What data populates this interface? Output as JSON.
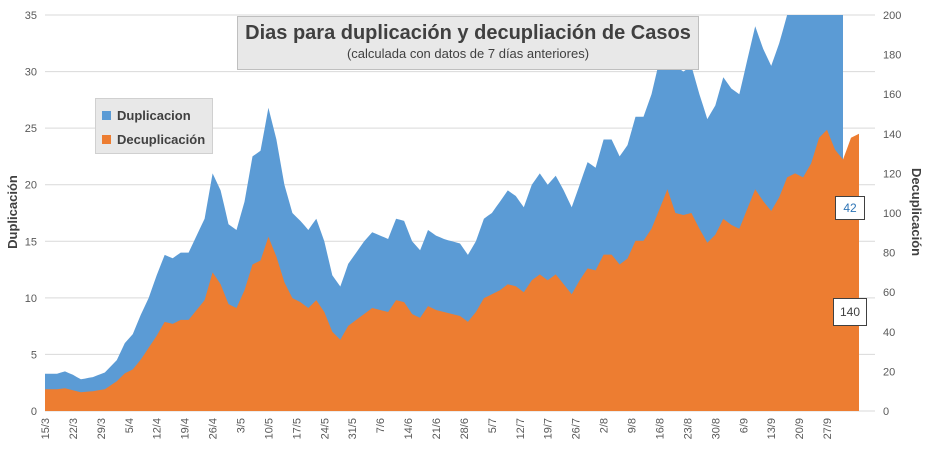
{
  "chart_data": {
    "type": "area",
    "title": "Dias para duplicación y decupliación de Casos",
    "subtitle": "(calculada con datos de 7 días anteriores)",
    "ylabel_left": "Duplicación",
    "ylabel_right": "Decuplicación",
    "ylim_left": [
      0,
      35
    ],
    "ylim_right": [
      0,
      200
    ],
    "yticks_left": [
      "0",
      "5",
      "10",
      "15",
      "20",
      "25",
      "30",
      "35"
    ],
    "yticks_right": [
      "0",
      "20",
      "40",
      "60",
      "80",
      "100",
      "120",
      "140",
      "160",
      "180",
      "200"
    ],
    "x_start": "15/3",
    "xtick_labels": [
      "15/3",
      "22/3",
      "29/3",
      "5/4",
      "12/4",
      "19/4",
      "26/4",
      "3/5",
      "10/5",
      "17/5",
      "24/5",
      "31/5",
      "7/6",
      "14/6",
      "21/6",
      "28/6",
      "5/7",
      "12/7",
      "19/7",
      "26/7",
      "2/8",
      "9/8",
      "16/8",
      "23/8",
      "30/8",
      "6/9",
      "13/9",
      "20/9",
      "27/9"
    ],
    "legend_position": "upper-left",
    "series": [
      {
        "name": "Duplicacion",
        "axis": "left",
        "color": "#5b9bd5",
        "keyframes": [
          [
            0,
            3.3
          ],
          [
            3,
            3.3
          ],
          [
            5,
            3.5
          ],
          [
            7,
            3.2
          ],
          [
            9,
            2.8
          ],
          [
            12,
            3.0
          ],
          [
            15,
            3.4
          ],
          [
            18,
            4.5
          ],
          [
            20,
            6.0
          ],
          [
            22,
            6.8
          ],
          [
            24,
            8.5
          ],
          [
            26,
            10.0
          ],
          [
            28,
            12.0
          ],
          [
            30,
            13.8
          ],
          [
            32,
            13.5
          ],
          [
            34,
            14.0
          ],
          [
            36,
            14.0
          ],
          [
            38,
            15.5
          ],
          [
            40,
            17.0
          ],
          [
            42,
            21.0
          ],
          [
            44,
            19.5
          ],
          [
            46,
            16.5
          ],
          [
            48,
            16.0
          ],
          [
            50,
            18.5
          ],
          [
            52,
            22.5
          ],
          [
            54,
            23.0
          ],
          [
            56,
            26.8
          ],
          [
            58,
            24.0
          ],
          [
            60,
            20.0
          ],
          [
            62,
            17.5
          ],
          [
            64,
            16.8
          ],
          [
            66,
            16.0
          ],
          [
            68,
            17.0
          ],
          [
            70,
            15.0
          ],
          [
            72,
            12.0
          ],
          [
            74,
            11.0
          ],
          [
            76,
            13.0
          ],
          [
            78,
            14.0
          ],
          [
            80,
            15.0
          ],
          [
            82,
            15.8
          ],
          [
            84,
            15.5
          ],
          [
            86,
            15.2
          ],
          [
            88,
            17.0
          ],
          [
            90,
            16.8
          ],
          [
            92,
            15.0
          ],
          [
            94,
            14.2
          ],
          [
            96,
            16.0
          ],
          [
            98,
            15.5
          ],
          [
            100,
            15.2
          ],
          [
            102,
            15.0
          ],
          [
            104,
            14.8
          ],
          [
            106,
            13.8
          ],
          [
            108,
            15.0
          ],
          [
            110,
            17.0
          ],
          [
            112,
            17.5
          ],
          [
            114,
            18.5
          ],
          [
            116,
            19.5
          ],
          [
            118,
            19.0
          ],
          [
            120,
            18.0
          ],
          [
            122,
            20.0
          ],
          [
            124,
            21.0
          ],
          [
            126,
            20.0
          ],
          [
            128,
            20.8
          ],
          [
            130,
            19.5
          ],
          [
            132,
            18.0
          ],
          [
            134,
            20.0
          ],
          [
            136,
            22.0
          ],
          [
            138,
            21.5
          ],
          [
            140,
            24.0
          ],
          [
            142,
            24.0
          ],
          [
            144,
            22.5
          ],
          [
            146,
            23.5
          ],
          [
            148,
            26.0
          ],
          [
            150,
            26.0
          ],
          [
            152,
            28.0
          ],
          [
            154,
            31.0
          ],
          [
            156,
            34.0
          ],
          [
            158,
            30.5
          ],
          [
            160,
            30.0
          ],
          [
            162,
            30.5
          ],
          [
            164,
            28.0
          ],
          [
            166,
            25.8
          ],
          [
            168,
            27.0
          ],
          [
            170,
            29.5
          ],
          [
            172,
            28.5
          ],
          [
            174,
            28.0
          ],
          [
            176,
            31.0
          ],
          [
            178,
            34.0
          ],
          [
            180,
            32.0
          ],
          [
            182,
            30.5
          ],
          [
            184,
            32.5
          ],
          [
            186,
            35.0
          ],
          [
            188,
            35.0
          ],
          [
            190,
            35.0
          ],
          [
            192,
            35.0
          ],
          [
            194,
            35.0
          ],
          [
            196,
            35.0
          ],
          [
            198,
            35.0
          ],
          [
            200,
            35.0
          ]
        ]
      },
      {
        "name": "Decuplicación",
        "axis": "right",
        "color": "#ed7d31",
        "keyframes": [
          [
            0,
            11
          ],
          [
            3,
            11
          ],
          [
            5,
            11.5
          ],
          [
            7,
            10.5
          ],
          [
            9,
            9.5
          ],
          [
            12,
            10
          ],
          [
            15,
            11
          ],
          [
            18,
            15
          ],
          [
            20,
            19
          ],
          [
            22,
            21
          ],
          [
            24,
            26
          ],
          [
            26,
            32
          ],
          [
            28,
            38
          ],
          [
            30,
            45
          ],
          [
            32,
            44
          ],
          [
            34,
            46
          ],
          [
            36,
            46
          ],
          [
            38,
            51
          ],
          [
            40,
            56
          ],
          [
            42,
            70
          ],
          [
            44,
            64
          ],
          [
            46,
            54
          ],
          [
            48,
            52
          ],
          [
            50,
            61
          ],
          [
            52,
            74
          ],
          [
            54,
            76
          ],
          [
            56,
            88
          ],
          [
            58,
            78
          ],
          [
            60,
            65
          ],
          [
            62,
            57
          ],
          [
            64,
            55
          ],
          [
            66,
            52
          ],
          [
            68,
            56
          ],
          [
            70,
            50
          ],
          [
            72,
            40
          ],
          [
            74,
            36
          ],
          [
            76,
            43
          ],
          [
            78,
            46
          ],
          [
            80,
            49
          ],
          [
            82,
            52
          ],
          [
            84,
            51
          ],
          [
            86,
            50
          ],
          [
            88,
            56
          ],
          [
            90,
            55
          ],
          [
            92,
            49
          ],
          [
            94,
            47
          ],
          [
            96,
            53
          ],
          [
            98,
            51
          ],
          [
            100,
            50
          ],
          [
            102,
            49
          ],
          [
            104,
            48
          ],
          [
            106,
            45
          ],
          [
            108,
            50
          ],
          [
            110,
            57
          ],
          [
            112,
            59
          ],
          [
            114,
            61
          ],
          [
            116,
            64
          ],
          [
            118,
            63
          ],
          [
            120,
            60
          ],
          [
            122,
            66
          ],
          [
            124,
            69
          ],
          [
            126,
            66
          ],
          [
            128,
            69
          ],
          [
            130,
            64
          ],
          [
            132,
            59
          ],
          [
            134,
            66
          ],
          [
            136,
            72
          ],
          [
            138,
            71
          ],
          [
            140,
            79
          ],
          [
            142,
            79
          ],
          [
            144,
            74
          ],
          [
            146,
            77
          ],
          [
            148,
            86
          ],
          [
            150,
            86
          ],
          [
            152,
            92
          ],
          [
            154,
            102
          ],
          [
            156,
            112
          ],
          [
            158,
            100
          ],
          [
            160,
            99
          ],
          [
            162,
            100
          ],
          [
            164,
            92
          ],
          [
            166,
            85
          ],
          [
            168,
            89
          ],
          [
            170,
            97
          ],
          [
            172,
            94
          ],
          [
            174,
            92
          ],
          [
            176,
            102
          ],
          [
            178,
            112
          ],
          [
            180,
            106
          ],
          [
            182,
            101
          ],
          [
            184,
            108
          ],
          [
            186,
            118
          ],
          [
            188,
            120
          ],
          [
            190,
            118
          ],
          [
            192,
            125
          ],
          [
            194,
            138
          ],
          [
            196,
            142
          ],
          [
            198,
            132
          ],
          [
            200,
            127
          ],
          [
            202,
            138
          ],
          [
            204,
            140
          ]
        ]
      }
    ],
    "data_labels": [
      {
        "series": "Duplicacion",
        "text": "42",
        "color": "#2e75b6"
      },
      {
        "series": "Decuplicación",
        "text": "140",
        "color": "#404040"
      }
    ]
  }
}
